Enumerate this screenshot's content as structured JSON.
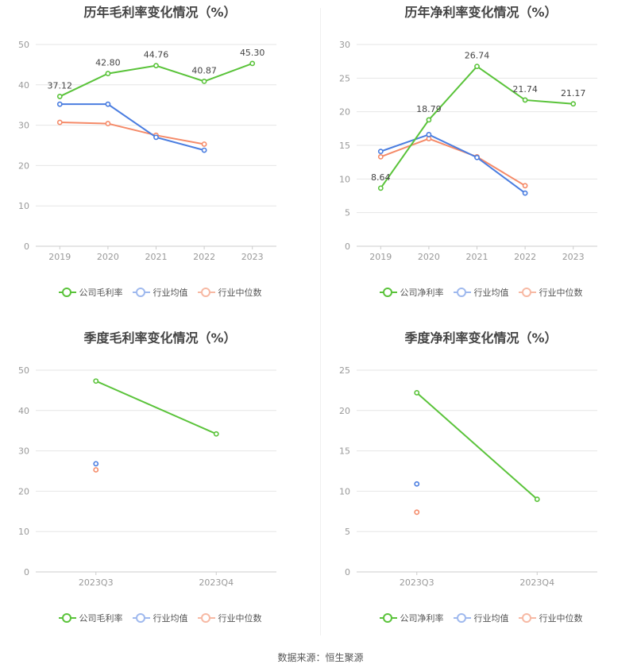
{
  "colors": {
    "company": "#5ac33a",
    "avg": "#4a7de0",
    "median": "#f58a68",
    "grid": "#e6e6e6",
    "axis": "#999999"
  },
  "legend": {
    "gross": "公司毛利率",
    "net": "公司净利率",
    "avg": "行业均值",
    "median": "行业中位数"
  },
  "source": "数据来源：恒生聚源",
  "chart_data": [
    {
      "type": "line",
      "title": "历年毛利率变化情况（%）",
      "categories": [
        "2019",
        "2020",
        "2021",
        "2022",
        "2023"
      ],
      "ylim": [
        0,
        50
      ],
      "yticks": [
        0,
        10,
        20,
        30,
        40,
        50
      ],
      "grid": true,
      "legend_position": "bottom",
      "series": [
        {
          "name": "公司毛利率",
          "values": [
            37.12,
            42.8,
            44.76,
            40.87,
            45.3
          ],
          "labels": [
            "37.12",
            "42.80",
            "44.76",
            "40.87",
            "45.30"
          ]
        },
        {
          "name": "行业均值",
          "values": [
            35.2,
            35.2,
            27.0,
            23.8,
            null
          ]
        },
        {
          "name": "行业中位数",
          "values": [
            30.7,
            30.4,
            27.5,
            25.3,
            null
          ]
        }
      ]
    },
    {
      "type": "line",
      "title": "历年净利率变化情况（%）",
      "categories": [
        "2019",
        "2020",
        "2021",
        "2022",
        "2023"
      ],
      "ylim": [
        0,
        30
      ],
      "yticks": [
        0,
        5,
        10,
        15,
        20,
        25,
        30
      ],
      "grid": true,
      "legend_position": "bottom",
      "series": [
        {
          "name": "公司净利率",
          "values": [
            8.64,
            18.79,
            26.74,
            21.74,
            21.17
          ],
          "labels": [
            "8.64",
            "18.79",
            "26.74",
            "21.74",
            "21.17"
          ]
        },
        {
          "name": "行业均值",
          "values": [
            14.1,
            16.6,
            13.2,
            7.9,
            null
          ]
        },
        {
          "name": "行业中位数",
          "values": [
            13.3,
            16.0,
            13.3,
            9.0,
            null
          ]
        }
      ]
    },
    {
      "type": "line",
      "title": "季度毛利率变化情况（%）",
      "categories": [
        "2023Q3",
        "2023Q4"
      ],
      "ylim": [
        0,
        50
      ],
      "yticks": [
        0,
        10,
        20,
        30,
        40,
        50
      ],
      "grid": true,
      "legend_position": "bottom",
      "series": [
        {
          "name": "公司毛利率",
          "values": [
            47.3,
            34.2
          ]
        },
        {
          "name": "行业均值",
          "values": [
            26.8,
            null
          ]
        },
        {
          "name": "行业中位数",
          "values": [
            25.3,
            null
          ]
        }
      ]
    },
    {
      "type": "line",
      "title": "季度净利率变化情况（%）",
      "categories": [
        "2023Q3",
        "2023Q4"
      ],
      "ylim": [
        0,
        25
      ],
      "yticks": [
        0,
        5,
        10,
        15,
        20,
        25
      ],
      "grid": true,
      "legend_position": "bottom",
      "series": [
        {
          "name": "公司净利率",
          "values": [
            22.2,
            9.0
          ]
        },
        {
          "name": "行业均值",
          "values": [
            10.9,
            null
          ]
        },
        {
          "name": "行业中位数",
          "values": [
            7.4,
            null
          ]
        }
      ]
    }
  ]
}
